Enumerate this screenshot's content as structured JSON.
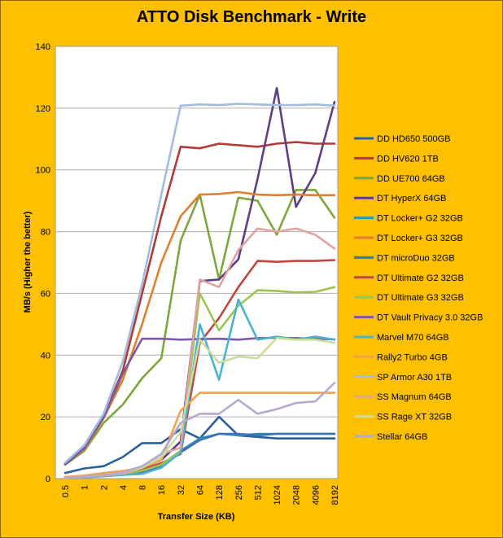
{
  "chart_data": {
    "type": "line",
    "title": "ATTO Disk Benchmark - Write",
    "xlabel": "Transfer Size (KB)",
    "ylabel": "MB/s (Higher the better)",
    "ylim": [
      0,
      140
    ],
    "yticks": [
      "0",
      "20",
      "40",
      "60",
      "80",
      "100",
      "120",
      "140"
    ],
    "grid": "horizontal",
    "legend_position": "right",
    "categories": [
      "0.5",
      "1",
      "2",
      "4",
      "8",
      "16",
      "32",
      "64",
      "128",
      "256",
      "512",
      "1024",
      "2048",
      "4096",
      "8192"
    ],
    "series": [
      {
        "name": "DD HD650 500GB",
        "color": "#2E5F9C",
        "values": [
          1.8,
          3.3,
          4.0,
          7.0,
          11.5,
          11.5,
          16.0,
          13.0,
          20.0,
          14.0,
          13.5,
          13.0,
          13.0,
          13.0,
          13.0
        ]
      },
      {
        "name": "DD HV620 1TB",
        "color": "#B23A37",
        "values": [
          4.8,
          10.0,
          20.0,
          35.0,
          60.0,
          85.0,
          107.5,
          107.0,
          108.5,
          108.0,
          107.5,
          108.5,
          109.0,
          108.5,
          108.5
        ]
      },
      {
        "name": "DD UE700 64GB",
        "color": "#7FA63A",
        "values": [
          4.5,
          9.0,
          18.0,
          24.0,
          32.5,
          39.0,
          77.0,
          92.0,
          64.5,
          91.0,
          90.0,
          79.0,
          93.5,
          93.5,
          84.5
        ]
      },
      {
        "name": "DT HyperX 64GB",
        "color": "#5E3E84",
        "values": [
          0.3,
          0.5,
          1.0,
          2.0,
          3.5,
          6.0,
          12.0,
          64.0,
          64.5,
          71.0,
          97.0,
          126.5,
          88.0,
          99.0,
          122.0
        ]
      },
      {
        "name": "DT Locker+ G2 32GB",
        "color": "#2E97B5",
        "values": [
          0.2,
          0.4,
          0.8,
          1.2,
          2.0,
          4.5,
          9.0,
          13.0,
          14.5,
          14.0,
          14.5,
          14.5,
          14.5,
          14.5,
          14.5
        ]
      },
      {
        "name": "DT Locker+ G3 32GB",
        "color": "#E07F2E",
        "values": [
          4.8,
          9.5,
          19.5,
          32.0,
          50.0,
          70.0,
          85.0,
          92.0,
          92.2,
          92.8,
          92.0,
          91.8,
          92.0,
          91.8,
          91.8
        ]
      },
      {
        "name": "DT microDuo 32GB",
        "color": "#3E71B5",
        "values": [
          0.2,
          0.4,
          0.8,
          1.2,
          2.0,
          4.0,
          8.5,
          12.5,
          14.5,
          14.5,
          14.0,
          14.5,
          14.5,
          14.5,
          14.5
        ]
      },
      {
        "name": "DT Ultimate G2 32GB",
        "color": "#C0463F",
        "values": [
          0.5,
          0.8,
          1.2,
          2.0,
          3.0,
          5.0,
          8.0,
          44.0,
          52.0,
          62.0,
          70.5,
          70.2,
          70.5,
          70.5,
          70.8
        ]
      },
      {
        "name": "DT Ultimate G3 32GB",
        "color": "#9BC550",
        "values": [
          0.3,
          0.5,
          1.0,
          1.5,
          2.5,
          4.5,
          9.0,
          60.0,
          48.0,
          56.0,
          61.0,
          60.8,
          60.3,
          60.5,
          62.0
        ]
      },
      {
        "name": "DT Vault Privacy 3.0 32GB",
        "color": "#7B5AA6",
        "values": [
          4.6,
          9.8,
          19.8,
          34.0,
          45.3,
          45.3,
          45.0,
          45.2,
          45.3,
          45.0,
          45.5,
          45.6,
          45.5,
          45.3,
          45.1
        ]
      },
      {
        "name": "Marvel M70 64GB",
        "color": "#4BB2CF",
        "values": [
          0.2,
          0.4,
          0.8,
          1.2,
          1.5,
          3.5,
          8.5,
          50.0,
          32.0,
          58.0,
          45.0,
          46.0,
          45.0,
          46.0,
          45.0
        ]
      },
      {
        "name": "Rally2 Turbo 4GB",
        "color": "#F5A04A",
        "values": [
          0.5,
          1.0,
          1.8,
          2.5,
          3.5,
          6.0,
          22.0,
          27.8,
          27.8,
          27.8,
          27.8,
          27.8,
          27.8,
          27.8,
          27.8
        ]
      },
      {
        "name": "SP Armor A30 1TB",
        "color": "#A2BCE0",
        "values": [
          5.2,
          10.8,
          21.0,
          38.0,
          63.0,
          92.0,
          120.8,
          121.2,
          121.0,
          121.4,
          121.2,
          121.0,
          121.0,
          121.2,
          120.8
        ]
      },
      {
        "name": "SS Magnum 64GB",
        "color": "#E0A3A2",
        "values": [
          0.2,
          0.5,
          1.0,
          1.5,
          3.5,
          8.0,
          10.0,
          64.5,
          62.0,
          74.0,
          81.0,
          80.0,
          81.0,
          79.0,
          74.5
        ]
      },
      {
        "name": "SS Rage XT 32GB",
        "color": "#C9DE9A",
        "values": [
          0.3,
          0.6,
          1.2,
          2.0,
          3.5,
          7.0,
          15.0,
          45.0,
          37.5,
          39.5,
          39.0,
          45.5,
          45.0,
          45.0,
          44.0
        ]
      },
      {
        "name": "Stellar 64GB",
        "color": "#B7A8D2",
        "values": [
          0.3,
          0.6,
          1.2,
          2.0,
          4.0,
          8.0,
          18.0,
          21.0,
          21.0,
          25.5,
          21.0,
          22.5,
          24.5,
          25.0,
          31.0
        ]
      }
    ]
  }
}
